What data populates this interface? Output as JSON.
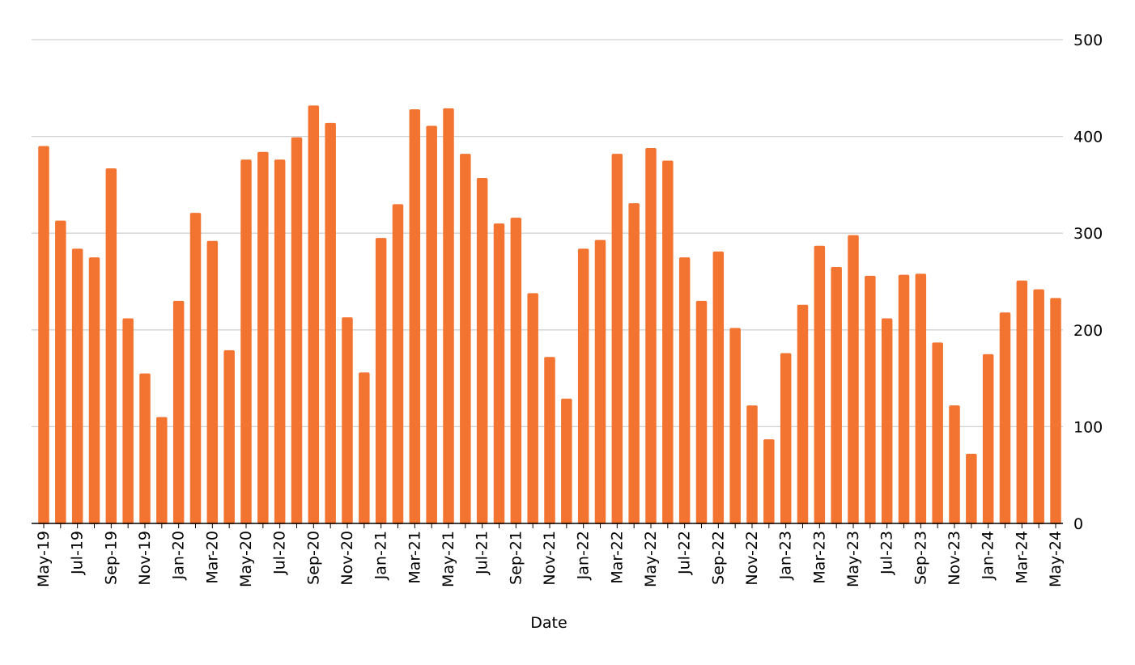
{
  "chart_data": {
    "type": "bar",
    "title": "",
    "xlabel": "Date",
    "ylabel": "",
    "ylim": [
      0,
      500
    ],
    "yticks": [
      0,
      100,
      200,
      300,
      400,
      500
    ],
    "y_axis_position": "right",
    "grid": "horizontal",
    "legend": "none",
    "bar_color": "#f27430",
    "categories": [
      "May-19",
      "Jun-19",
      "Jul-19",
      "Aug-19",
      "Sep-19",
      "Oct-19",
      "Nov-19",
      "Dec-19",
      "Jan-20",
      "Feb-20",
      "Mar-20",
      "Apr-20",
      "May-20",
      "Jun-20",
      "Jul-20",
      "Aug-20",
      "Sep-20",
      "Oct-20",
      "Nov-20",
      "Dec-20",
      "Jan-21",
      "Feb-21",
      "Mar-21",
      "Apr-21",
      "May-21",
      "Jun-21",
      "Jul-21",
      "Aug-21",
      "Sep-21",
      "Oct-21",
      "Nov-21",
      "Dec-21",
      "Jan-22",
      "Feb-22",
      "Mar-22",
      "Apr-22",
      "May-22",
      "Jun-22",
      "Jul-22",
      "Aug-22",
      "Sep-22",
      "Oct-22",
      "Nov-22",
      "Dec-22",
      "Jan-23",
      "Feb-23",
      "Mar-23",
      "Apr-23",
      "May-23",
      "Jun-23",
      "Jul-23",
      "Aug-23",
      "Sep-23",
      "Oct-23",
      "Nov-23",
      "Dec-23",
      "Jan-24",
      "Feb-24",
      "Mar-24",
      "Apr-24",
      "May-24"
    ],
    "x_tick_labels": [
      "May-19",
      "Jul-19",
      "Sep-19",
      "Nov-19",
      "Jan-20",
      "Mar-20",
      "May-20",
      "Jul-20",
      "Sep-20",
      "Nov-20",
      "Jan-21",
      "Mar-21",
      "May-21",
      "Jul-21",
      "Sep-21",
      "Nov-21",
      "Jan-22",
      "Mar-22",
      "May-22",
      "Jul-22",
      "Sep-22",
      "Nov-22",
      "Jan-23",
      "Mar-23",
      "May-23",
      "Jul-23",
      "Sep-23",
      "Nov-23",
      "Jan-24",
      "Mar-24",
      "May-24"
    ],
    "values": [
      390,
      313,
      284,
      275,
      367,
      212,
      155,
      110,
      230,
      321,
      292,
      179,
      376,
      384,
      376,
      399,
      432,
      414,
      213,
      156,
      295,
      330,
      428,
      411,
      429,
      382,
      357,
      310,
      316,
      238,
      172,
      129,
      284,
      293,
      382,
      331,
      388,
      375,
      275,
      230,
      281,
      202,
      122,
      87,
      176,
      226,
      287,
      265,
      298,
      256,
      212,
      257,
      258,
      187,
      122,
      72,
      175,
      218,
      251,
      242,
      233
    ]
  }
}
